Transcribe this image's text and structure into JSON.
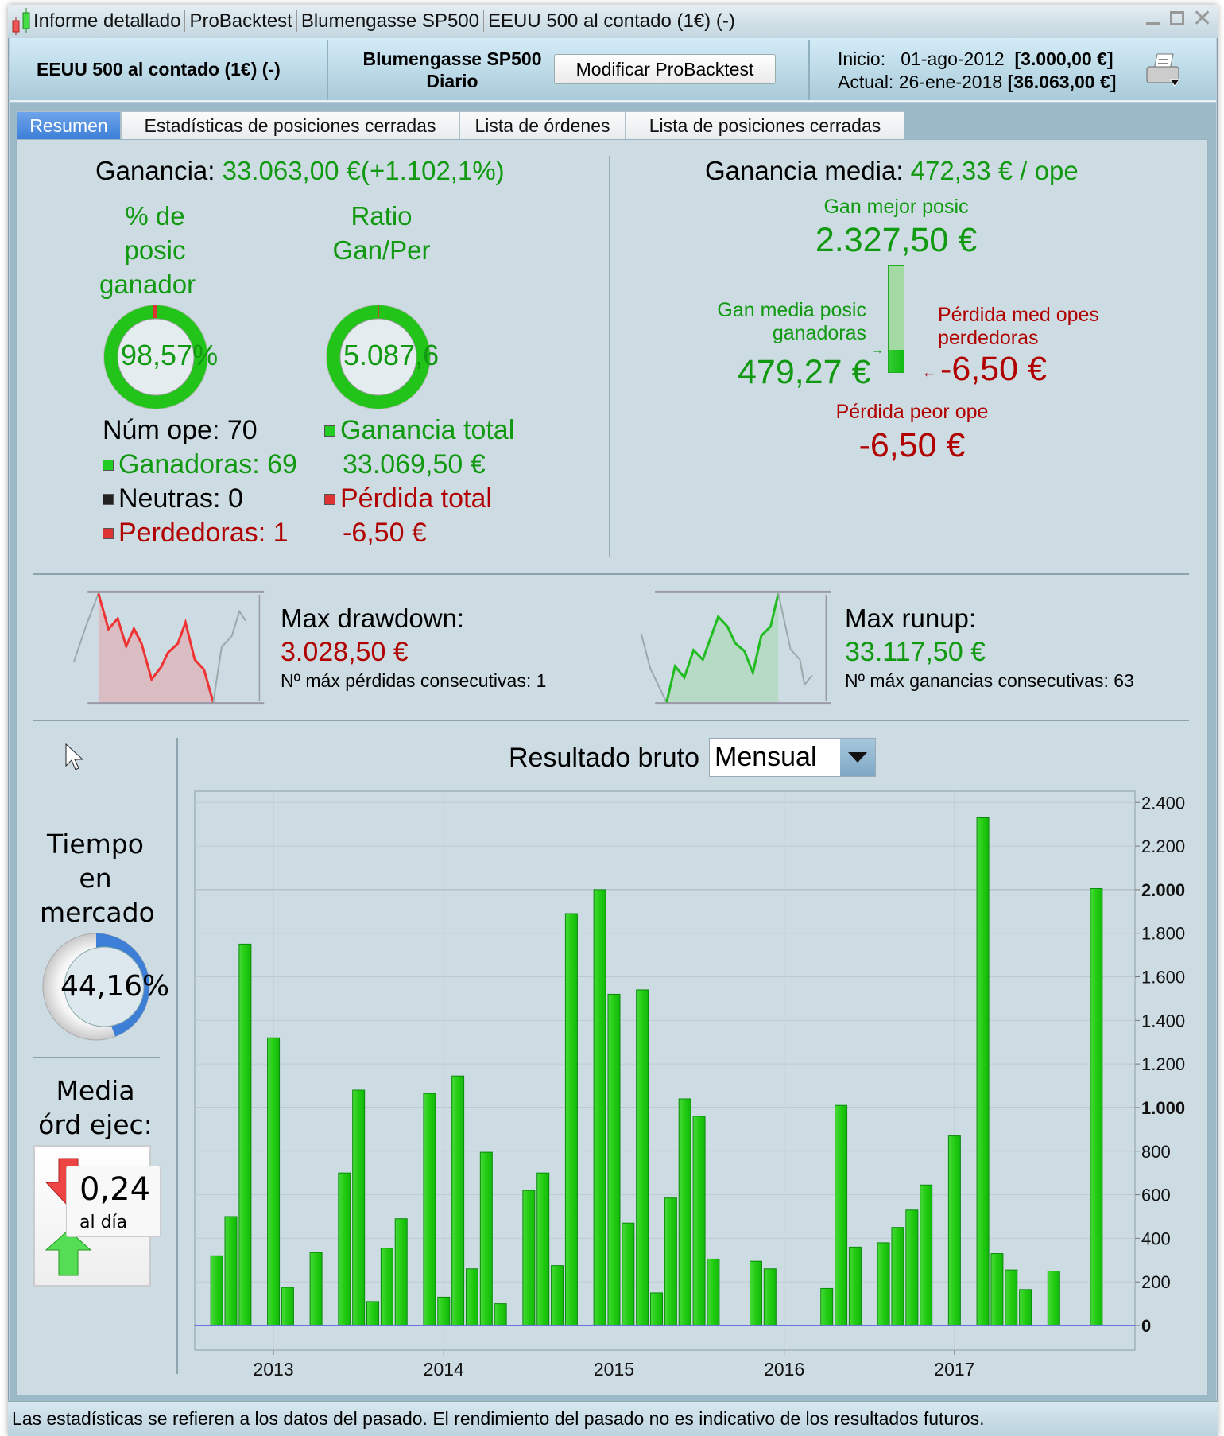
{
  "window": {
    "title_segments": [
      "Informe detallado",
      "ProBacktest",
      "Blumengasse SP500",
      "EEUU 500 al contado (1€) (-)"
    ]
  },
  "header": {
    "instrument": "EEUU 500 al contado (1€) (-)",
    "system_name": "Blumengasse SP500",
    "timeframe": "Diario",
    "modify_button": "Modificar ProBacktest",
    "start_label": "Inicio:",
    "start_date": "01-ago-2012",
    "start_capital": "[3.000,00 €]",
    "current_label": "Actual:",
    "current_date": "26-ene-2018",
    "current_capital": "[36.063,00 €]"
  },
  "tabs": [
    {
      "label": "Resumen",
      "active": true
    },
    {
      "label": "Estadísticas de posiciones cerradas",
      "active": false
    },
    {
      "label": "Lista de órdenes",
      "active": false
    },
    {
      "label": "Lista de posiciones cerradas",
      "active": false
    }
  ],
  "summary": {
    "gain_label": "Ganancia:",
    "gain_value": "33.063,00 €",
    "gain_pct": "(+1.102,1%)",
    "win_pct_title": [
      "% de",
      "posic",
      "ganador"
    ],
    "win_pct_value": "98,57%",
    "win_pct_fraction": 0.9857,
    "ratio_title": [
      "Ratio",
      "Gan/Per"
    ],
    "ratio_value": "5.087,6",
    "num_trades": "Núm ope: 70",
    "winners": "Ganadoras: 69",
    "neutral": "Neutras: 0",
    "losers": "Perdedoras: 1",
    "total_gain_label": "Ganancia total",
    "total_gain_value": "33.069,50 €",
    "total_loss_label": "Pérdida total",
    "total_loss_value": "-6,50 €"
  },
  "average": {
    "label": "Ganancia media:",
    "value": "472,33 € / ope",
    "best_label": "Gan mejor posic",
    "best_value": "2.327,50 €",
    "avg_win_label": [
      "Gan media posic",
      "ganadoras"
    ],
    "avg_win_value": "479,27 €",
    "avg_loss_label": [
      "Pérdida med opes",
      "perdedoras"
    ],
    "avg_loss_value": "-6,50 €",
    "worst_label": "Pérdida peor ope",
    "worst_value": "-6,50 €"
  },
  "drawdown": {
    "label": "Max drawdown:",
    "value": "3.028,50 €",
    "consecutive": "Nº máx pérdidas consecutivas: 1"
  },
  "runup": {
    "label": "Max runup:",
    "value": "33.117,50 €",
    "consecutive": "Nº máx ganancias consecutivas: 63"
  },
  "market_time": {
    "title": [
      "Tiempo",
      "en",
      "mercado"
    ],
    "value": "44,16%",
    "fraction": 0.4416
  },
  "orders": {
    "title": [
      "Media",
      "órd ejec:"
    ],
    "value": "0,24",
    "unit": "al día"
  },
  "gross_result": {
    "label": "Resultado bruto",
    "period_selected": "Mensual"
  },
  "chart_data": {
    "type": "bar",
    "title": "Resultado bruto",
    "xlabel": "",
    "ylabel": "",
    "first_month": "2012-09",
    "months": [
      "2012-09",
      "2012-10",
      "2012-11",
      "2012-12",
      "2013-01",
      "2013-02",
      "2013-03",
      "2013-04",
      "2013-05",
      "2013-06",
      "2013-07",
      "2013-08",
      "2013-09",
      "2013-10",
      "2013-11",
      "2013-12",
      "2014-01",
      "2014-02",
      "2014-03",
      "2014-04",
      "2014-05",
      "2014-06",
      "2014-07",
      "2014-08",
      "2014-09",
      "2014-10",
      "2014-11",
      "2014-12",
      "2015-01",
      "2015-02",
      "2015-03",
      "2015-04",
      "2015-05",
      "2015-06",
      "2015-07",
      "2015-08",
      "2015-09",
      "2015-10",
      "2015-11",
      "2015-12",
      "2016-01",
      "2016-02",
      "2016-03",
      "2016-04",
      "2016-05",
      "2016-06",
      "2016-07",
      "2016-08",
      "2016-09",
      "2016-10",
      "2016-11",
      "2016-12",
      "2017-01",
      "2017-02",
      "2017-03",
      "2017-04",
      "2017-05",
      "2017-06",
      "2017-07",
      "2017-08",
      "2017-09",
      "2017-10",
      "2017-11"
    ],
    "values": [
      320,
      500,
      1750,
      null,
      1320,
      175,
      null,
      335,
      null,
      700,
      1080,
      110,
      355,
      490,
      null,
      1065,
      130,
      1145,
      260,
      795,
      100,
      null,
      620,
      700,
      275,
      1890,
      null,
      2000,
      1520,
      470,
      1540,
      150,
      585,
      1040,
      960,
      305,
      null,
      null,
      295,
      260,
      null,
      null,
      null,
      170,
      1010,
      360,
      null,
      380,
      450,
      530,
      645,
      null,
      870,
      null,
      2330,
      330,
      255,
      165,
      null,
      250,
      null,
      null,
      2005
    ],
    "ylim": [
      -113,
      2452
    ],
    "yticks": [
      0,
      200,
      400,
      600,
      800,
      1000,
      1200,
      1400,
      1600,
      1800,
      2000,
      2200,
      2400
    ],
    "ytick_labels": [
      "0",
      "200",
      "400",
      "600",
      "800",
      "1.000",
      "1.200",
      "1.400",
      "1.600",
      "1.800",
      "2.000",
      "2.200",
      "2.400"
    ],
    "xtick_labels": [
      "2013",
      "2014",
      "2015",
      "2016",
      "2017"
    ],
    "xtick_month_index": [
      4,
      16,
      28,
      40,
      52
    ],
    "grid": true,
    "bar_color": "#22cc11",
    "zero_line_color": "#3333dd"
  },
  "footer": {
    "disclaimer": "Las estadísticas se refieren a los datos del pasado. El rendimiento del pasado no es indicativo de los resultados futuros."
  },
  "colors": {
    "gain": "#119911",
    "loss": "#b00000",
    "accent": "#3c7fd8",
    "market_arc": "#3d7fd6"
  }
}
